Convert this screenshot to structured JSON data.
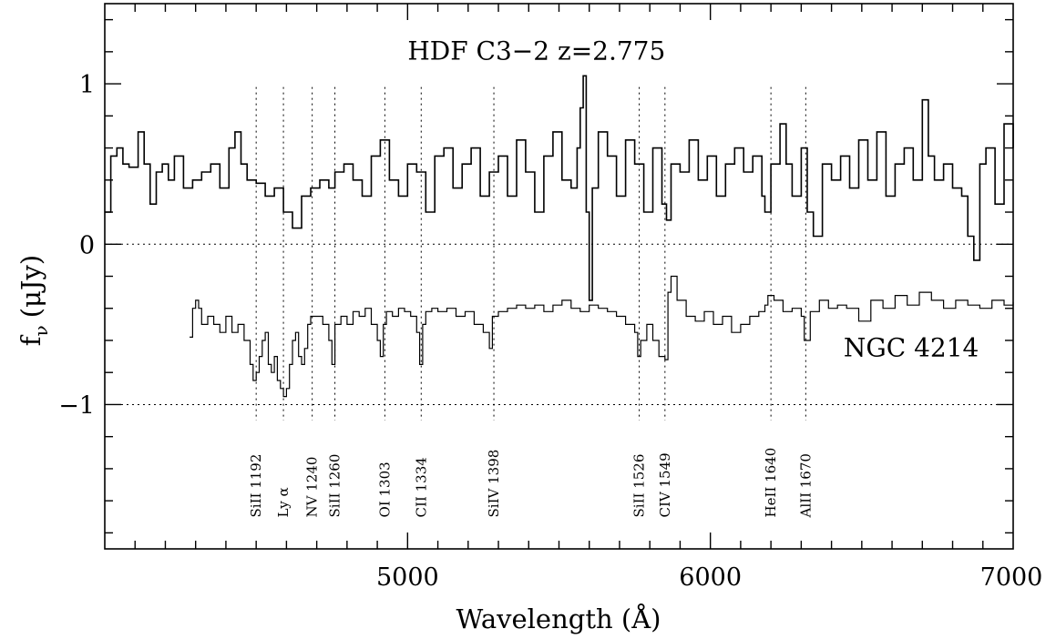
{
  "chart_data": {
    "type": "line",
    "xlabel": "Wavelength (Å)",
    "ylabel": "f",
    "ylabel_sub": "ν",
    "ylabel_unit": "(μJy)",
    "xlim": [
      4000,
      7000
    ],
    "ylim": [
      -1.9,
      1.5
    ],
    "x_ticks": [
      {
        "value": 5000,
        "label": "5000"
      },
      {
        "value": 6000,
        "label": "6000"
      },
      {
        "value": 7000,
        "label": "7000"
      }
    ],
    "y_ticks": [
      {
        "value": 1,
        "label": "1"
      },
      {
        "value": 0,
        "label": "0"
      },
      {
        "value": -1,
        "label": "−1"
      }
    ],
    "reference_lines": [
      0,
      -1
    ],
    "series": [
      {
        "name": "HDF C3−2 z=2.775",
        "color": "#000000",
        "x": [
          4000,
          4020,
          4040,
          4060,
          4080,
          4110,
          4130,
          4150,
          4170,
          4190,
          4210,
          4230,
          4260,
          4290,
          4320,
          4350,
          4380,
          4410,
          4430,
          4450,
          4470,
          4500,
          4530,
          4560,
          4590,
          4620,
          4650,
          4680,
          4710,
          4740,
          4760,
          4790,
          4820,
          4850,
          4880,
          4910,
          4940,
          4970,
          5000,
          5030,
          5060,
          5090,
          5120,
          5150,
          5180,
          5210,
          5240,
          5270,
          5300,
          5330,
          5360,
          5390,
          5420,
          5450,
          5480,
          5510,
          5540,
          5560,
          5570,
          5580,
          5590,
          5600,
          5610,
          5630,
          5660,
          5690,
          5720,
          5750,
          5780,
          5810,
          5840,
          5855,
          5870,
          5900,
          5930,
          5960,
          5990,
          6020,
          6050,
          6080,
          6110,
          6140,
          6170,
          6180,
          6200,
          6230,
          6250,
          6270,
          6300,
          6320,
          6340,
          6370,
          6400,
          6430,
          6460,
          6490,
          6520,
          6550,
          6580,
          6610,
          6640,
          6670,
          6700,
          6720,
          6740,
          6770,
          6800,
          6830,
          6850,
          6870,
          6890,
          6910,
          6940,
          6970,
          7000
        ],
        "values": [
          0.2,
          0.55,
          0.6,
          0.5,
          0.48,
          0.7,
          0.5,
          0.25,
          0.45,
          0.5,
          0.4,
          0.55,
          0.35,
          0.4,
          0.45,
          0.5,
          0.35,
          0.6,
          0.7,
          0.5,
          0.4,
          0.38,
          0.3,
          0.35,
          0.2,
          0.1,
          0.3,
          0.35,
          0.4,
          0.35,
          0.45,
          0.5,
          0.4,
          0.3,
          0.55,
          0.65,
          0.4,
          0.3,
          0.5,
          0.45,
          0.2,
          0.55,
          0.6,
          0.35,
          0.5,
          0.6,
          0.3,
          0.45,
          0.55,
          0.3,
          0.65,
          0.45,
          0.2,
          0.55,
          0.7,
          0.4,
          0.35,
          0.6,
          0.85,
          1.05,
          0.2,
          -0.35,
          0.35,
          0.7,
          0.55,
          0.3,
          0.65,
          0.5,
          0.2,
          0.6,
          0.25,
          0.15,
          0.5,
          0.45,
          0.65,
          0.4,
          0.55,
          0.3,
          0.5,
          0.6,
          0.45,
          0.55,
          0.3,
          0.2,
          0.5,
          0.75,
          0.5,
          0.3,
          0.6,
          0.2,
          0.05,
          0.5,
          0.4,
          0.55,
          0.35,
          0.65,
          0.4,
          0.7,
          0.3,
          0.5,
          0.6,
          0.4,
          0.9,
          0.55,
          0.4,
          0.5,
          0.35,
          0.3,
          0.05,
          -0.1,
          0.5,
          0.6,
          0.25,
          0.75,
          0.6
        ]
      },
      {
        "name": "NGC 4214",
        "color": "#000000",
        "x": [
          4280,
          4290,
          4300,
          4310,
          4320,
          4340,
          4360,
          4380,
          4400,
          4420,
          4440,
          4460,
          4480,
          4490,
          4500,
          4510,
          4520,
          4530,
          4540,
          4550,
          4560,
          4570,
          4580,
          4590,
          4600,
          4610,
          4620,
          4630,
          4640,
          4650,
          4660,
          4670,
          4680,
          4700,
          4720,
          4740,
          4750,
          4760,
          4780,
          4800,
          4820,
          4840,
          4860,
          4880,
          4900,
          4910,
          4920,
          4930,
          4950,
          4970,
          4990,
          5010,
          5030,
          5040,
          5050,
          5060,
          5080,
          5100,
          5130,
          5160,
          5190,
          5220,
          5250,
          5270,
          5280,
          5300,
          5330,
          5360,
          5390,
          5420,
          5450,
          5480,
          5510,
          5540,
          5570,
          5600,
          5630,
          5660,
          5690,
          5720,
          5750,
          5760,
          5770,
          5790,
          5810,
          5830,
          5850,
          5860,
          5870,
          5890,
          5920,
          5950,
          5980,
          6010,
          6040,
          6070,
          6100,
          6130,
          6160,
          6180,
          6190,
          6210,
          6240,
          6270,
          6300,
          6310,
          6330,
          6360,
          6390,
          6420,
          6450,
          6490,
          6530,
          6570,
          6610,
          6650,
          6690,
          6730,
          6770,
          6810,
          6850,
          6890,
          6930,
          6970,
          7000
        ],
        "values": [
          -0.58,
          -0.4,
          -0.35,
          -0.4,
          -0.5,
          -0.45,
          -0.5,
          -0.55,
          -0.45,
          -0.55,
          -0.5,
          -0.6,
          -0.75,
          -0.85,
          -0.8,
          -0.7,
          -0.6,
          -0.55,
          -0.75,
          -0.8,
          -0.7,
          -0.85,
          -0.9,
          -0.95,
          -0.9,
          -0.75,
          -0.6,
          -0.55,
          -0.7,
          -0.75,
          -0.65,
          -0.5,
          -0.45,
          -0.45,
          -0.5,
          -0.6,
          -0.75,
          -0.5,
          -0.45,
          -0.5,
          -0.42,
          -0.45,
          -0.4,
          -0.5,
          -0.6,
          -0.7,
          -0.5,
          -0.42,
          -0.45,
          -0.4,
          -0.42,
          -0.45,
          -0.55,
          -0.75,
          -0.5,
          -0.42,
          -0.4,
          -0.42,
          -0.4,
          -0.45,
          -0.42,
          -0.5,
          -0.55,
          -0.65,
          -0.45,
          -0.42,
          -0.4,
          -0.38,
          -0.4,
          -0.38,
          -0.42,
          -0.38,
          -0.35,
          -0.4,
          -0.42,
          -0.38,
          -0.4,
          -0.42,
          -0.45,
          -0.5,
          -0.55,
          -0.7,
          -0.6,
          -0.5,
          -0.6,
          -0.7,
          -0.72,
          -0.3,
          -0.2,
          -0.35,
          -0.45,
          -0.48,
          -0.42,
          -0.5,
          -0.45,
          -0.55,
          -0.5,
          -0.45,
          -0.42,
          -0.38,
          -0.32,
          -0.35,
          -0.42,
          -0.4,
          -0.45,
          -0.6,
          -0.42,
          -0.35,
          -0.4,
          -0.38,
          -0.4,
          -0.48,
          -0.35,
          -0.4,
          -0.32,
          -0.38,
          -0.3,
          -0.35,
          -0.4,
          -0.35,
          -0.38,
          -0.4,
          -0.35,
          -0.38,
          -0.36
        ]
      }
    ],
    "series_labels": [
      {
        "text": "HDF C3−2 z=2.775",
        "x": 5000,
        "y": 1.15
      },
      {
        "text": "NGC 4214",
        "x": 6440,
        "y": -0.7
      }
    ],
    "line_ids": [
      {
        "label": "SiII 1192",
        "x": 4500
      },
      {
        "label": "Ly α",
        "x": 4590
      },
      {
        "label": "NV 1240",
        "x": 4685
      },
      {
        "label": "SiII 1260",
        "x": 4760
      },
      {
        "label": "OI 1303",
        "x": 4925
      },
      {
        "label": "CII 1334",
        "x": 5045
      },
      {
        "label": "SiIV 1398",
        "x": 5285
      },
      {
        "label": "SiII 1526",
        "x": 5765
      },
      {
        "label": "CIV 1549",
        "x": 5850
      },
      {
        "label": "HeII 1640",
        "x": 6200
      },
      {
        "label": "AlII 1670",
        "x": 6315
      }
    ],
    "line_id_span": [
      0.98,
      -1.1
    ],
    "line_label_y": -1.25
  }
}
